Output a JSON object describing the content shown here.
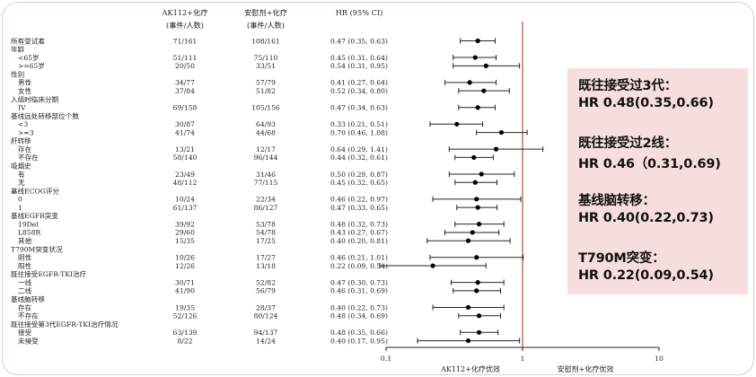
{
  "chart_data": {
    "type": "forest",
    "x_scale": "log",
    "xlim": [
      0.1,
      10
    ],
    "x_ticks": [
      "0.1",
      "1",
      "10"
    ],
    "reference_line": 1,
    "reference_line_color": "#c0392b",
    "x_favor_left": "AK112+化疗优效",
    "x_favor_right": "安慰剂+化疗优效",
    "columns": {
      "treatment": {
        "title": "AK112+化疗",
        "subtitle": "(事件/人数)"
      },
      "control": {
        "title": "安慰剂+化疗",
        "subtitle": "(事件/人数)"
      },
      "hr": {
        "title": "HR (95% CI)"
      }
    },
    "rows": [
      {
        "label": "所有受试者",
        "indent": 0,
        "treatment": "71/161",
        "control": "108/161",
        "hr_text": "0.47 (0.35, 0.63)",
        "hr": 0.47,
        "lo": 0.35,
        "hi": 0.63
      },
      {
        "label": "年龄",
        "indent": 0
      },
      {
        "label": "<65岁",
        "indent": 1,
        "treatment": "51/111",
        "control": "75/110",
        "hr_text": "0.45 (0.31, 0.64)",
        "hr": 0.45,
        "lo": 0.31,
        "hi": 0.64
      },
      {
        "label": ">=65岁",
        "indent": 1,
        "treatment": "20/50",
        "control": "33/51",
        "hr_text": "0.54 (0.31, 0.95)",
        "hr": 0.54,
        "lo": 0.31,
        "hi": 0.95
      },
      {
        "label": "性别",
        "indent": 0
      },
      {
        "label": "男性",
        "indent": 1,
        "treatment": "34/77",
        "control": "57/79",
        "hr_text": "0.41 (0.27, 0.64)",
        "hr": 0.41,
        "lo": 0.27,
        "hi": 0.64
      },
      {
        "label": "女性",
        "indent": 1,
        "treatment": "37/84",
        "control": "51/82",
        "hr_text": "0.52 (0.34, 0.80)",
        "hr": 0.52,
        "lo": 0.34,
        "hi": 0.8
      },
      {
        "label": "入组时临床分期",
        "indent": 0
      },
      {
        "label": "IV",
        "indent": 1,
        "treatment": "69/158",
        "control": "105/156",
        "hr_text": "0.47 (0.34, 0.63)",
        "hr": 0.47,
        "lo": 0.34,
        "hi": 0.63
      },
      {
        "label": "基线远处转移部位个数",
        "indent": 0
      },
      {
        "label": "<3",
        "indent": 1,
        "treatment": "30/87",
        "control": "64/93",
        "hr_text": "0.33 (0.21, 0.51)",
        "hr": 0.33,
        "lo": 0.21,
        "hi": 0.51
      },
      {
        "label": ">=3",
        "indent": 1,
        "treatment": "41/74",
        "control": "44/68",
        "hr_text": "0.70 (0.46, 1.08)",
        "hr": 0.7,
        "lo": 0.46,
        "hi": 1.08
      },
      {
        "label": "肝转移",
        "indent": 0
      },
      {
        "label": "存在",
        "indent": 1,
        "treatment": "13/21",
        "control": "12/17",
        "hr_text": "0.64 (0.29, 1.41)",
        "hr": 0.64,
        "lo": 0.29,
        "hi": 1.41
      },
      {
        "label": "不存在",
        "indent": 1,
        "treatment": "58/140",
        "control": "96/144",
        "hr_text": "0.44 (0.32, 0.61)",
        "hr": 0.44,
        "lo": 0.32,
        "hi": 0.61
      },
      {
        "label": "吸烟史",
        "indent": 0
      },
      {
        "label": "有",
        "indent": 1,
        "treatment": "23/49",
        "control": "31/46",
        "hr_text": "0.50 (0.29, 0.87)",
        "hr": 0.5,
        "lo": 0.29,
        "hi": 0.87
      },
      {
        "label": "无",
        "indent": 1,
        "treatment": "48/112",
        "control": "77/115",
        "hr_text": "0.45 (0.32, 0.65)",
        "hr": 0.45,
        "lo": 0.32,
        "hi": 0.65
      },
      {
        "label": "基线ECOG评分",
        "indent": 0
      },
      {
        "label": "0",
        "indent": 1,
        "treatment": "10/24",
        "control": "22/34",
        "hr_text": "0.46 (0.22, 0.97)",
        "hr": 0.46,
        "lo": 0.22,
        "hi": 0.97
      },
      {
        "label": "1",
        "indent": 1,
        "treatment": "61/137",
        "control": "86/127",
        "hr_text": "0.47 (0.33, 0.65)",
        "hr": 0.47,
        "lo": 0.33,
        "hi": 0.65
      },
      {
        "label": "基线EGFR突变",
        "indent": 0
      },
      {
        "label": "19Del",
        "indent": 1,
        "treatment": "39/92",
        "control": "53/78",
        "hr_text": "0.48 (0.32, 0.73)",
        "hr": 0.48,
        "lo": 0.32,
        "hi": 0.73
      },
      {
        "label": "L858R",
        "indent": 1,
        "treatment": "29/60",
        "control": "54/78",
        "hr_text": "0.43 (0.27, 0.67)",
        "hr": 0.43,
        "lo": 0.27,
        "hi": 0.67
      },
      {
        "label": "其他",
        "indent": 1,
        "treatment": "15/35",
        "control": "17/25",
        "hr_text": "0.40 (0.20, 0.81)",
        "hr": 0.4,
        "lo": 0.2,
        "hi": 0.81
      },
      {
        "label": "T790M突变状况",
        "indent": 0
      },
      {
        "label": "阴性",
        "indent": 1,
        "treatment": "10/26",
        "control": "17/27",
        "hr_text": "0.46 (0.21, 1.01)",
        "hr": 0.46,
        "lo": 0.21,
        "hi": 1.01
      },
      {
        "label": "阳性",
        "indent": 1,
        "treatment": "12/26",
        "control": "13/18",
        "hr_text": "0.22 (0.09, 0.54)",
        "hr": 0.22,
        "lo": 0.09,
        "hi": 0.54
      },
      {
        "label": "既往接受EGFR-TKI治疗",
        "indent": 0
      },
      {
        "label": "一线",
        "indent": 1,
        "treatment": "30/71",
        "control": "52/82",
        "hr_text": "0.47 (0.30, 0.73)",
        "hr": 0.47,
        "lo": 0.3,
        "hi": 0.73
      },
      {
        "label": "二线",
        "indent": 1,
        "treatment": "41/90",
        "control": "56/79",
        "hr_text": "0.46 (0.31, 0.69)",
        "hr": 0.46,
        "lo": 0.31,
        "hi": 0.69
      },
      {
        "label": "基线脑转移",
        "indent": 0
      },
      {
        "label": "存在",
        "indent": 1,
        "treatment": "19/35",
        "control": "28/37",
        "hr_text": "0.40 (0.22, 0.73)",
        "hr": 0.4,
        "lo": 0.22,
        "hi": 0.73
      },
      {
        "label": "不存在",
        "indent": 1,
        "treatment": "52/126",
        "control": "80/124",
        "hr_text": "0.48 (0.34, 0.69)",
        "hr": 0.48,
        "lo": 0.34,
        "hi": 0.69
      },
      {
        "label": "既往接受第3代EGFR-TKI治疗情况",
        "indent": 0
      },
      {
        "label": "接受",
        "indent": 1,
        "treatment": "63/139",
        "control": "94/137",
        "hr_text": "0.48 (0.35, 0.66)",
        "hr": 0.48,
        "lo": 0.35,
        "hi": 0.66
      },
      {
        "label": "未接受",
        "indent": 1,
        "treatment": "8/22",
        "control": "14/24",
        "hr_text": "0.40 (0.17, 0.95)",
        "hr": 0.4,
        "lo": 0.17,
        "hi": 0.95
      }
    ]
  },
  "summary_box": {
    "background": "#f6dede",
    "items": [
      {
        "line1": "既往接受过3代：",
        "line2": "HR 0.48(0.35,0.66)"
      },
      {
        "line1": "既往接受过2线：",
        "line2": "HR 0.46（0.31,0.69)"
      },
      {
        "line1": "基线脑转移：",
        "line2": "HR 0.40(0.22,0.73)"
      },
      {
        "line1": "T790M突变：",
        "line2": "HR 0.22(0.09,0.54)"
      }
    ]
  }
}
